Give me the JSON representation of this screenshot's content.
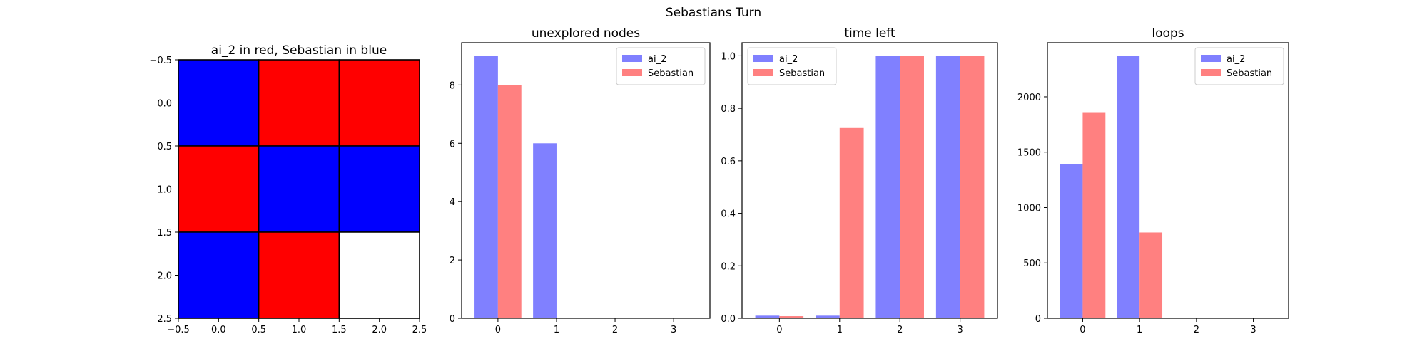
{
  "figure": {
    "suptitle": "Sebastians Turn"
  },
  "chart_data": [
    {
      "type": "heatmap",
      "title": "ai_2 in red, Sebastian in blue",
      "grid": [
        [
          "blue",
          "red",
          "red"
        ],
        [
          "red",
          "blue",
          "blue"
        ],
        [
          "blue",
          "red",
          "white"
        ]
      ],
      "colors": {
        "red": "#ff0000",
        "blue": "#0000ff",
        "white": "#ffffff"
      },
      "xlim": [
        -0.5,
        2.5
      ],
      "ylim": [
        2.5,
        -0.5
      ],
      "xticks": [
        "−0.5",
        "0.0",
        "0.5",
        "1.0",
        "1.5",
        "2.0",
        "2.5"
      ],
      "yticks": [
        "−0.5",
        "0.0",
        "0.5",
        "1.0",
        "1.5",
        "2.0",
        "2.5"
      ]
    },
    {
      "type": "bar",
      "title": "unexplored nodes",
      "categories": [
        "0",
        "1",
        "2",
        "3"
      ],
      "series": [
        {
          "name": "ai_2",
          "color": "#8080ff",
          "values": [
            9,
            6,
            0,
            0
          ]
        },
        {
          "name": "Sebastian",
          "color": "#ff8080",
          "values": [
            8,
            0,
            0,
            0
          ]
        }
      ],
      "ylim": [
        0,
        9.45
      ],
      "yticks": [
        "0",
        "2",
        "4",
        "6",
        "8"
      ],
      "legend": "top-right"
    },
    {
      "type": "bar",
      "title": "time left",
      "categories": [
        "0",
        "1",
        "2",
        "3"
      ],
      "series": [
        {
          "name": "ai_2",
          "color": "#8080ff",
          "values": [
            0.01,
            0.01,
            1.0,
            1.0
          ]
        },
        {
          "name": "Sebastian",
          "color": "#ff8080",
          "values": [
            0.008,
            0.725,
            1.0,
            1.0
          ]
        }
      ],
      "ylim": [
        0,
        1.05
      ],
      "yticks": [
        "0.0",
        "0.2",
        "0.4",
        "0.6",
        "0.8",
        "1.0"
      ],
      "legend": "top-left"
    },
    {
      "type": "bar",
      "title": "loops",
      "categories": [
        "0",
        "1",
        "2",
        "3"
      ],
      "series": [
        {
          "name": "ai_2",
          "color": "#8080ff",
          "values": [
            1395,
            2370,
            0,
            0
          ]
        },
        {
          "name": "Sebastian",
          "color": "#ff8080",
          "values": [
            1855,
            775,
            0,
            0
          ]
        }
      ],
      "ylim": [
        0,
        2488.5
      ],
      "yticks": [
        "0",
        "500",
        "1000",
        "1500",
        "2000"
      ],
      "legend": "top-right"
    }
  ]
}
